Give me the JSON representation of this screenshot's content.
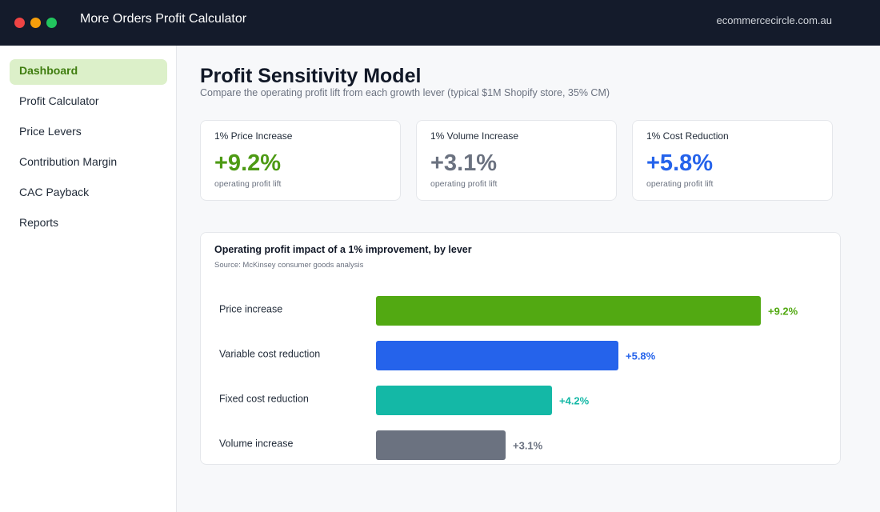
{
  "window": {
    "title": "More Orders Profit Calculator",
    "domain": "ecommercecircle.com.au"
  },
  "sidebar": {
    "items": [
      {
        "label": "Dashboard",
        "active": true
      },
      {
        "label": "Profit Calculator",
        "active": false
      },
      {
        "label": "Price Levers",
        "active": false
      },
      {
        "label": "Contribution Margin",
        "active": false
      },
      {
        "label": "CAC Payback",
        "active": false
      },
      {
        "label": "Reports",
        "active": false
      }
    ]
  },
  "page": {
    "title": "Profit Sensitivity Model",
    "subtitle": "Compare the operating profit lift from each growth lever (typical $1M Shopify store, 35% CM)"
  },
  "cards": [
    {
      "label": "1% Price Increase",
      "value": "+9.2%",
      "note": "operating profit lift",
      "color": "#4d9a14"
    },
    {
      "label": "1% Volume Increase",
      "value": "+3.1%",
      "note": "operating profit lift",
      "color": "#6b7280"
    },
    {
      "label": "1% Cost Reduction",
      "value": "+5.8%",
      "note": "operating profit lift",
      "color": "#2563eb"
    }
  ],
  "chart_data": {
    "type": "bar",
    "orientation": "horizontal",
    "title": "Operating profit impact of a 1% improvement, by lever",
    "subtitle": "Source: McKinsey consumer goods analysis",
    "categories": [
      "Price increase",
      "Variable cost reduction",
      "Fixed cost reduction",
      "Volume increase"
    ],
    "values": [
      9.2,
      5.8,
      4.2,
      3.1
    ],
    "value_labels": [
      "+9.2%",
      "+5.8%",
      "+4.2%",
      "+3.1%"
    ],
    "colors": [
      "#52a912",
      "#2563eb",
      "#14b8a6",
      "#6b7280"
    ],
    "label_colors": [
      "#52a912",
      "#2563eb",
      "#14b8a6",
      "#6b7280"
    ],
    "xlim": [
      0,
      9.2
    ],
    "grid": false,
    "legend": "none"
  }
}
